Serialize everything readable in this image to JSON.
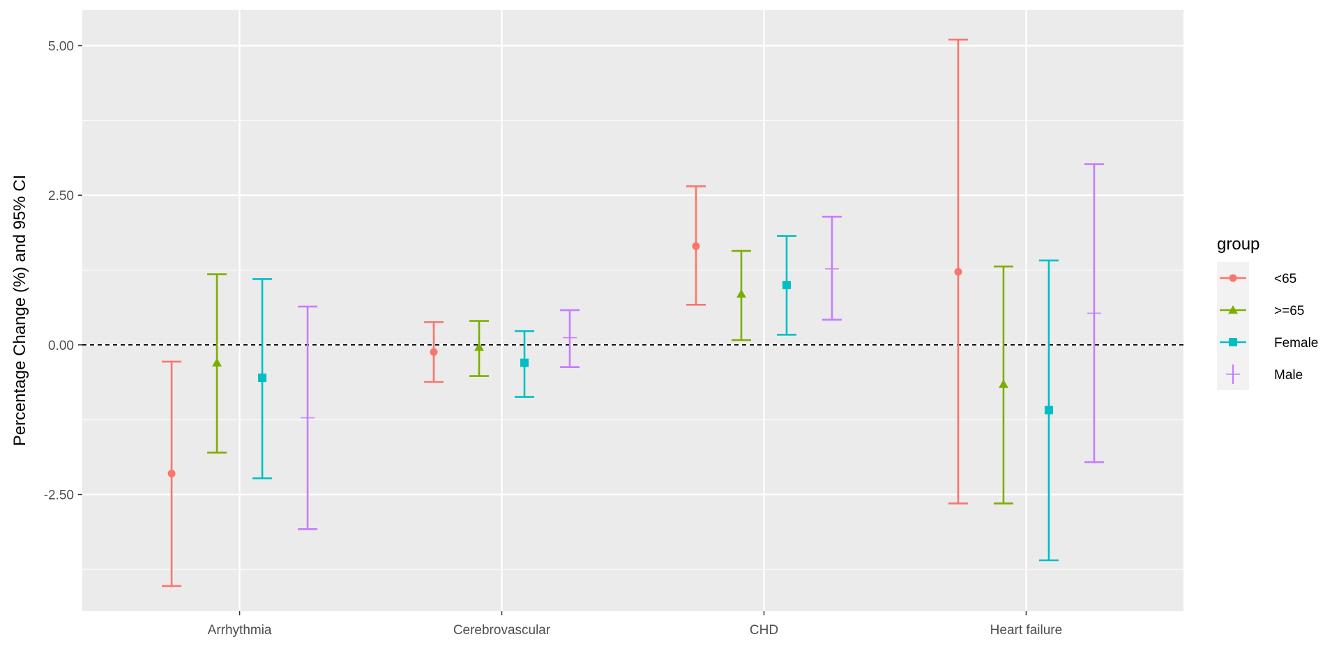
{
  "chart_data": {
    "type": "scatter",
    "subtype": "point-errorbar",
    "title": "",
    "xlabel": "",
    "ylabel": "Percentage Change (%) and 95% CI",
    "categories": [
      "Arrhythmia",
      "Cerebrovascular",
      "CHD",
      "Heart failure"
    ],
    "y_ticks": [
      -2.5,
      0,
      2.5,
      5
    ],
    "y_tick_labels": [
      "-2.50",
      "0.00",
      "2.50",
      "5.00"
    ],
    "ylim": [
      -4.45,
      5.6
    ],
    "reference_line": 0,
    "grid": true,
    "legend_position": "right",
    "legend_title": "group",
    "series": [
      {
        "name": "<65",
        "color": "#F8766D",
        "shape": "circle",
        "estimate": [
          -2.15,
          -0.12,
          1.65,
          1.22
        ],
        "lower": [
          -4.03,
          -0.62,
          0.67,
          -2.65
        ],
        "upper": [
          -0.28,
          0.38,
          2.65,
          5.1
        ]
      },
      {
        "name": ">=65",
        "color": "#7CAE00",
        "shape": "triangle",
        "estimate": [
          -0.3,
          -0.04,
          0.85,
          -0.66
        ],
        "lower": [
          -1.8,
          -0.52,
          0.08,
          -2.65
        ],
        "upper": [
          1.18,
          0.4,
          1.57,
          1.31
        ]
      },
      {
        "name": "Female",
        "color": "#00BFC4",
        "shape": "square",
        "estimate": [
          -0.55,
          -0.3,
          1.0,
          -1.09
        ],
        "lower": [
          -2.23,
          -0.87,
          0.17,
          -3.6
        ],
        "upper": [
          1.1,
          0.23,
          1.82,
          1.41
        ]
      },
      {
        "name": "Male",
        "color": "#C77CFF",
        "shape": "plus",
        "estimate": [
          -1.22,
          0.12,
          1.27,
          0.53
        ],
        "lower": [
          -3.08,
          -0.37,
          0.42,
          -1.96
        ],
        "upper": [
          0.64,
          0.58,
          2.14,
          3.02
        ]
      }
    ]
  }
}
